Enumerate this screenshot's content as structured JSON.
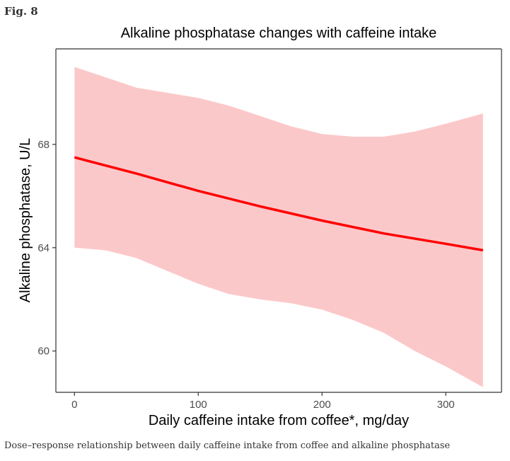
{
  "figure": {
    "label": "Fig. 8",
    "caption": "Dose–response relationship between daily caffeine intake from coffee and alkaline phosphatase"
  },
  "colors": {
    "line": "#ff0000",
    "ribbon": "#fbc8ca",
    "axis": "#333333",
    "tick_text": "#4d4d4d"
  },
  "chart_data": {
    "type": "line",
    "title": "Alkaline phosphatase changes with caffeine intake",
    "xlabel": "Daily caffeine intake from coffee*,  mg/day",
    "ylabel": "Alkaline phosphatase,  U/L",
    "xlim": [
      -15,
      345
    ],
    "ylim": [
      58.4,
      71.7
    ],
    "x_ticks": [
      0,
      100,
      200,
      300
    ],
    "y_ticks": [
      60,
      64,
      68
    ],
    "grid": false,
    "series": [
      {
        "x": [
          0,
          50,
          100,
          150,
          200,
          250,
          300,
          330
        ],
        "values": [
          67.5,
          66.87,
          66.2,
          65.6,
          65.05,
          64.55,
          64.15,
          63.9
        ]
      }
    ],
    "confidence_band": {
      "x": [
        0,
        25,
        50,
        75,
        100,
        125,
        150,
        175,
        200,
        225,
        250,
        275,
        300,
        330
      ],
      "lower": [
        64.0,
        63.9,
        63.6,
        63.1,
        62.6,
        62.2,
        62.0,
        61.85,
        61.6,
        61.2,
        60.7,
        60.0,
        59.4,
        58.6
      ],
      "upper": [
        71.0,
        70.6,
        70.2,
        70.0,
        69.8,
        69.5,
        69.1,
        68.7,
        68.4,
        68.3,
        68.3,
        68.5,
        68.8,
        69.2
      ]
    }
  }
}
